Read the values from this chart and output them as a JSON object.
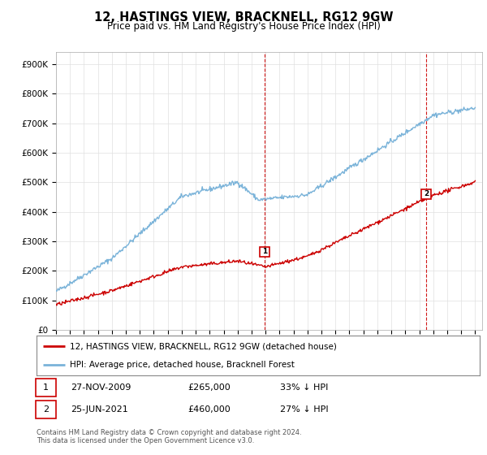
{
  "title": "12, HASTINGS VIEW, BRACKNELL, RG12 9GW",
  "subtitle": "Price paid vs. HM Land Registry's House Price Index (HPI)",
  "ylabel_ticks": [
    "£0",
    "£100K",
    "£200K",
    "£300K",
    "£400K",
    "£500K",
    "£600K",
    "£700K",
    "£800K",
    "£900K"
  ],
  "ytick_vals": [
    0,
    100000,
    200000,
    300000,
    400000,
    500000,
    600000,
    700000,
    800000,
    900000
  ],
  "ylim": [
    0,
    940000
  ],
  "xlim_start": 1995.0,
  "xlim_end": 2025.5,
  "hpi_color": "#7ab3d9",
  "price_color": "#cc0000",
  "marker1_x": 2009.92,
  "marker1_y": 265000,
  "marker2_x": 2021.5,
  "marker2_y": 460000,
  "legend_line1": "12, HASTINGS VIEW, BRACKNELL, RG12 9GW (detached house)",
  "legend_line2": "HPI: Average price, detached house, Bracknell Forest",
  "footnote": "Contains HM Land Registry data © Crown copyright and database right 2024.\nThis data is licensed under the Open Government Licence v3.0.",
  "bg_color": "#ffffff",
  "plot_bg_color": "#ffffff",
  "grid_color": "#e0e0e0"
}
